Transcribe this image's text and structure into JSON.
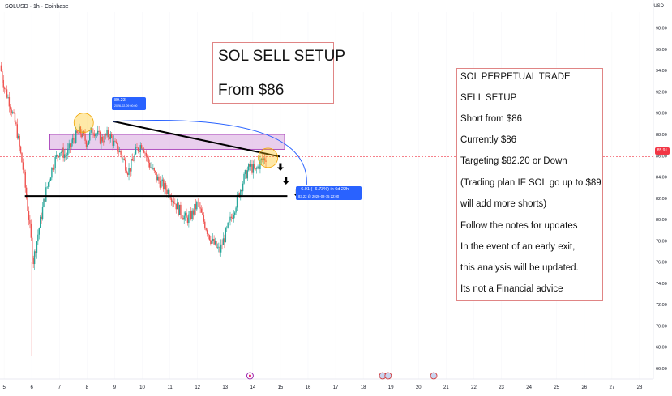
{
  "header": {
    "symbol_line": "SOLUSD · 1h · Coinbase",
    "currency": "USD"
  },
  "setup_box": {
    "line1": "SOL SELL SETUP",
    "line2": "From $86"
  },
  "notes": [
    "SOL PERPETUAL TRADE",
    "SELL SETUP",
    "Short from $86",
    "Currently $86",
    "Targeting $82.20 or Down",
    "(Trading plan IF SOL go up to $89",
    "will add more shorts)",
    "Follow the notes for updates",
    "In the event of an early exit,",
    "this analysis will be updated.",
    "Its not a Financial advice"
  ],
  "labels": {
    "top_price": "89.23",
    "top_time": "2026-02-09 00:00",
    "target_change": "−6.01 (−6.73%) in 6d 22h",
    "target_detail": "83.22 @ 2026-02-15 22:00",
    "current_price": "85.91"
  },
  "colors": {
    "up": "#26a69a",
    "down": "#ef5350",
    "zone": "#e1bee7",
    "zone_border": "#9c27b0",
    "path": "#2962ff",
    "circle": "#ffc107",
    "price_tag": "#f23645"
  },
  "chart_data": {
    "type": "candlestick",
    "instrument": "SOLUSD",
    "interval": "1h",
    "exchange": "Coinbase",
    "y_axis": {
      "ticks": [
        66,
        68,
        70,
        72,
        74,
        76,
        78,
        80,
        82,
        84,
        86,
        88,
        90,
        92,
        94,
        96,
        98
      ],
      "ylim": [
        65,
        99.5
      ]
    },
    "x_axis": {
      "ticks": [
        "5",
        "6",
        "7",
        "8",
        "9",
        "10",
        "11",
        "12",
        "13",
        "14",
        "15",
        "16",
        "17",
        "18",
        "19",
        "20",
        "21",
        "22",
        "23",
        "24",
        "25",
        "26",
        "27",
        "28"
      ],
      "xlim": [
        4.85,
        28.5
      ]
    },
    "price_path": [
      [
        4.85,
        94.5
      ],
      [
        5.0,
        92.5
      ],
      [
        5.2,
        91.0
      ],
      [
        5.45,
        88.5
      ],
      [
        5.7,
        84.5
      ],
      [
        5.9,
        80.0
      ],
      [
        6.05,
        76.0
      ],
      [
        6.25,
        79.0
      ],
      [
        6.5,
        82.5
      ],
      [
        6.75,
        85.0
      ],
      [
        7.0,
        86.5
      ],
      [
        7.25,
        86.0
      ],
      [
        7.5,
        87.5
      ],
      [
        7.75,
        88.3
      ],
      [
        8.0,
        87.2
      ],
      [
        8.2,
        88.6
      ],
      [
        8.5,
        87.5
      ],
      [
        8.8,
        88.0
      ],
      [
        9.0,
        87.0
      ],
      [
        9.2,
        86.3
      ],
      [
        9.5,
        84.5
      ],
      [
        9.8,
        86.5
      ],
      [
        10.0,
        87.2
      ],
      [
        10.2,
        85.5
      ],
      [
        10.5,
        84.0
      ],
      [
        10.8,
        83.0
      ],
      [
        11.0,
        82.5
      ],
      [
        11.3,
        81.0
      ],
      [
        11.6,
        80.0
      ],
      [
        11.8,
        80.5
      ],
      [
        12.0,
        81.5
      ],
      [
        12.2,
        80.0
      ],
      [
        12.5,
        78.0
      ],
      [
        12.8,
        77.0
      ],
      [
        13.0,
        78.5
      ],
      [
        13.2,
        80.0
      ],
      [
        13.45,
        82.0
      ],
      [
        13.7,
        84.0
      ],
      [
        13.9,
        85.0
      ],
      [
        14.1,
        84.5
      ],
      [
        14.3,
        85.5
      ],
      [
        14.5,
        85.9
      ]
    ],
    "annotations": {
      "sell_zone": {
        "x": [
          6.65,
          15.15
        ],
        "y": [
          86.6,
          88.0
        ]
      },
      "support_line": {
        "price": 82.2,
        "x": [
          5.75,
          15.25
        ]
      },
      "current_price": 85.91,
      "trend_line": {
        "from": [
          8.95,
          89.23
        ],
        "to": [
          15.0,
          85.9
        ]
      },
      "projection_path": {
        "from": [
          8.95,
          89.23
        ],
        "to": [
          15.95,
          83.22
        ]
      },
      "highlight_circles": [
        {
          "x": 7.88,
          "y": 89.1
        },
        {
          "x": 14.55,
          "y": 85.8
        }
      ],
      "down_arrows": [
        [
          15.0,
          85.3
        ],
        [
          15.2,
          84.0
        ],
        [
          15.6,
          82.8
        ]
      ],
      "event_icons": [
        {
          "type": "flag",
          "x": [
            13.9,
            18.7,
            18.9,
            20.55
          ]
        }
      ]
    }
  }
}
